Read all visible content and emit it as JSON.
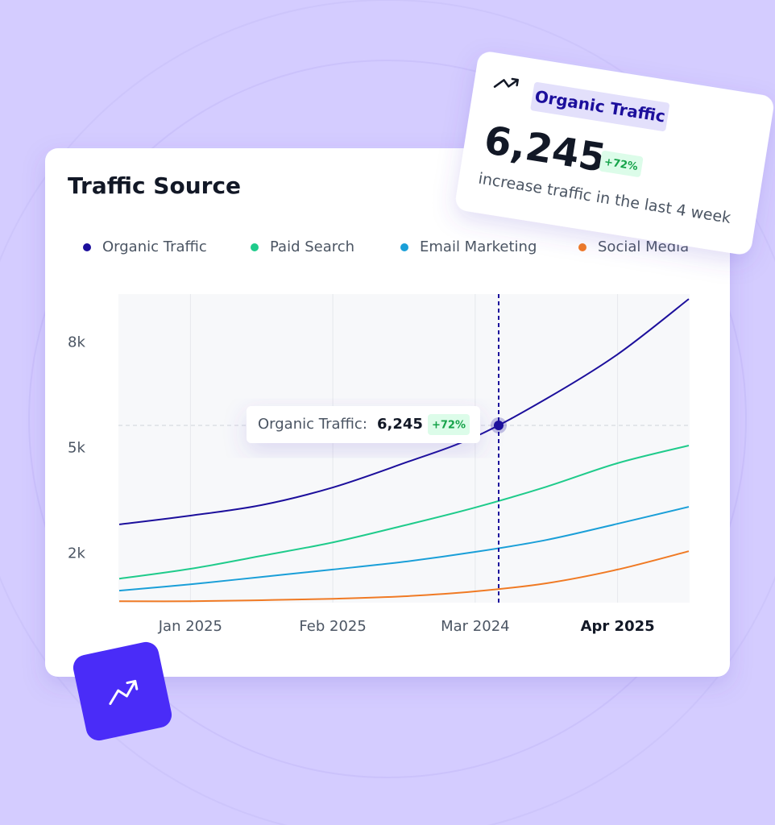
{
  "chart_data": {
    "type": "line",
    "title": "Traffic Source",
    "categories": [
      null,
      "Jan 2025",
      null,
      "Feb 2025",
      null,
      "Mar 2024",
      null,
      "Apr 2025",
      null
    ],
    "series": [
      {
        "name": "Organic Traffic",
        "color": "#1c0f9c",
        "values": [
          2840,
          3090,
          3390,
          3890,
          4580,
          5330,
          6410,
          7670,
          9240
        ]
      },
      {
        "name": "Paid Search",
        "color": "#1fcb8b",
        "values": [
          1300,
          1580,
          1950,
          2330,
          2810,
          3320,
          3910,
          4580,
          5080
        ]
      },
      {
        "name": "Email Marketing",
        "color": "#1a9fd8",
        "values": [
          960,
          1140,
          1350,
          1560,
          1780,
          2060,
          2400,
          2860,
          3340
        ]
      },
      {
        "name": "Social Media",
        "color": "#f07a24",
        "values": [
          660,
          660,
          690,
          730,
          800,
          940,
          1170,
          1560,
          2080
        ]
      }
    ],
    "ylim": [
      620,
      9380
    ],
    "yticks": [
      {
        "value": 2000,
        "label": "2k"
      },
      {
        "value": 5000,
        "label": "5k"
      },
      {
        "value": 8000,
        "label": "8k"
      }
    ],
    "legend": "top",
    "tooltip": {
      "label": "Organic Traffic:",
      "value": "6,245",
      "change": "+72%"
    }
  },
  "stat_card": {
    "badge": "Organic Traffic",
    "value": "6,245",
    "change": "+72%",
    "caption": "increase traffic in the last 4 week"
  }
}
